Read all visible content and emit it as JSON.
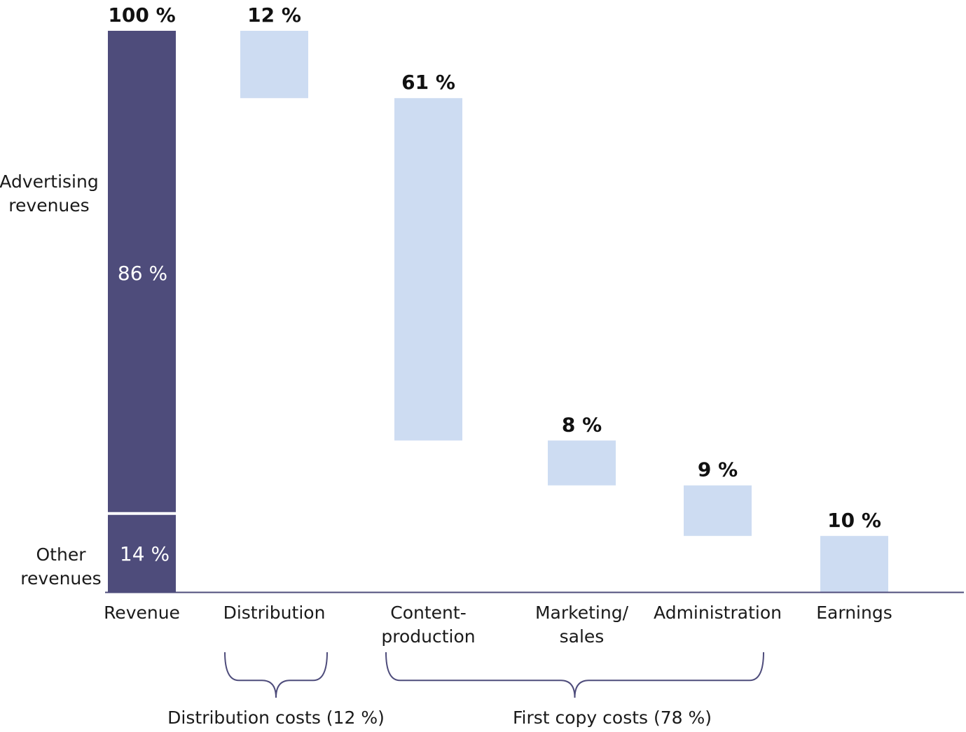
{
  "chart_data": {
    "type": "waterfall",
    "title": "",
    "ylim": [
      0,
      100
    ],
    "colors": {
      "revenue": "#4e4c7b",
      "cost": "#cddcf2",
      "axis": "#4e4c7b",
      "brace": "#4e4c7b"
    },
    "bars": [
      {
        "category": "Revenue",
        "lines": [
          "Revenue"
        ],
        "kind": "total",
        "start": 0,
        "end": 100,
        "label": "100 %"
      },
      {
        "category": "Distribution",
        "lines": [
          "Distribution"
        ],
        "kind": "cost",
        "start": 100,
        "end": 88,
        "label": "12 %"
      },
      {
        "category": "Content-production",
        "lines": [
          "Content-",
          "production"
        ],
        "kind": "cost",
        "start": 88,
        "end": 27,
        "label": "61 %"
      },
      {
        "category": "Marketing/sales",
        "lines": [
          "Marketing/",
          "sales"
        ],
        "kind": "cost",
        "start": 27,
        "end": 19,
        "label": "8 %"
      },
      {
        "category": "Administration",
        "lines": [
          "Administration"
        ],
        "kind": "cost",
        "start": 19,
        "end": 10,
        "label": "9 %"
      },
      {
        "category": "Earnings",
        "lines": [
          "Earnings"
        ],
        "kind": "result",
        "start": 10,
        "end": 0,
        "label": "10 %"
      }
    ],
    "revenue_split": [
      {
        "name": "Advertising revenues",
        "lines": [
          "Advertising",
          "revenues"
        ],
        "value": 86,
        "label": "86 %"
      },
      {
        "name": "Other revenues",
        "lines": [
          "Other",
          "revenues"
        ],
        "value": 14,
        "label": "14 %"
      }
    ],
    "groups": [
      {
        "label": "Distribution costs (12 %)",
        "from": 1,
        "to": 1
      },
      {
        "label": "First copy costs (78 %)",
        "from": 2,
        "to": 4
      }
    ]
  }
}
